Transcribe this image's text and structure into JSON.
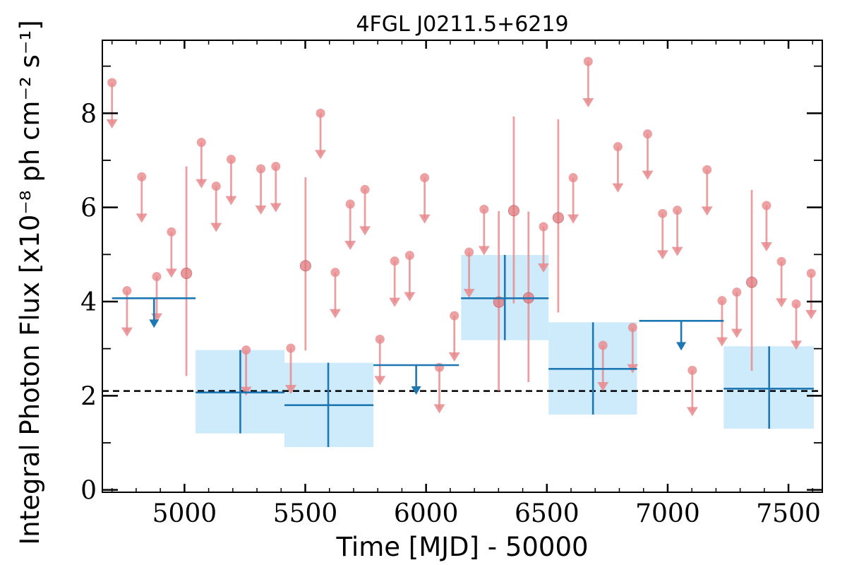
{
  "chart_data": {
    "type": "scatter",
    "title": "4FGL J0211.5+6219",
    "xlabel": "Time [MJD] - 50000",
    "ylabel": "Integral Photon Flux [x10⁻⁸ ph cm⁻² s⁻¹]",
    "xlim": [
      4660,
      7640
    ],
    "ylim": [
      -0.05,
      9.55
    ],
    "xticks": [
      5000,
      5500,
      6000,
      6500,
      7000,
      7500
    ],
    "xtick_labels": [
      "5000",
      "5500",
      "6000",
      "6500",
      "7000",
      "7500"
    ],
    "yticks": [
      0,
      2,
      4,
      6,
      8
    ],
    "ytick_labels": [
      "0",
      "2",
      "4",
      "6",
      "8"
    ],
    "grid": false,
    "reference_line": {
      "y": 2.1,
      "style": "dashed",
      "color": "#000000"
    },
    "colors": {
      "short_bins": "#e8898c",
      "long_bins": "#1f77b4",
      "long_band": "#cdebfa"
    },
    "series": [
      {
        "marker": "upper-limit",
        "color": "#e8898c",
        "points": [
          {
            "x": 4700,
            "y": 8.65
          },
          {
            "x": 4762,
            "y": 4.23
          },
          {
            "x": 4823,
            "y": 6.65
          },
          {
            "x": 4885,
            "y": 4.53
          },
          {
            "x": 4946,
            "y": 5.48
          },
          {
            "x": 5070,
            "y": 7.38
          },
          {
            "x": 5131,
            "y": 6.45
          },
          {
            "x": 5193,
            "y": 7.02
          },
          {
            "x": 5255,
            "y": 2.97
          },
          {
            "x": 5316,
            "y": 6.82
          },
          {
            "x": 5378,
            "y": 6.87
          },
          {
            "x": 5440,
            "y": 3.01
          },
          {
            "x": 5563,
            "y": 8.0
          },
          {
            "x": 5624,
            "y": 4.62
          },
          {
            "x": 5686,
            "y": 6.07
          },
          {
            "x": 5747,
            "y": 6.38
          },
          {
            "x": 5809,
            "y": 3.2
          },
          {
            "x": 5870,
            "y": 4.86
          },
          {
            "x": 5932,
            "y": 4.98
          },
          {
            "x": 5994,
            "y": 6.63
          },
          {
            "x": 6055,
            "y": 2.6
          },
          {
            "x": 6117,
            "y": 3.7
          },
          {
            "x": 6178,
            "y": 5.05
          },
          {
            "x": 6240,
            "y": 5.96
          },
          {
            "x": 6486,
            "y": 5.59
          },
          {
            "x": 6609,
            "y": 6.63
          },
          {
            "x": 6671,
            "y": 9.1
          },
          {
            "x": 6732,
            "y": 3.07
          },
          {
            "x": 6794,
            "y": 7.29
          },
          {
            "x": 6855,
            "y": 3.45
          },
          {
            "x": 6917,
            "y": 7.56
          },
          {
            "x": 6979,
            "y": 5.87
          },
          {
            "x": 7040,
            "y": 5.94
          },
          {
            "x": 7102,
            "y": 2.54
          },
          {
            "x": 7163,
            "y": 6.8
          },
          {
            "x": 7225,
            "y": 4.02
          },
          {
            "x": 7286,
            "y": 4.2
          },
          {
            "x": 7409,
            "y": 6.04
          },
          {
            "x": 7471,
            "y": 4.85
          },
          {
            "x": 7532,
            "y": 3.95
          },
          {
            "x": 7594,
            "y": 4.6
          }
        ]
      },
      {
        "marker": "detection",
        "color": "#e8898c",
        "points": [
          {
            "x": 5008,
            "y": 4.6,
            "ylow": 2.42,
            "yhigh": 6.87
          },
          {
            "x": 5501,
            "y": 4.76,
            "ylow": 2.96,
            "yhigh": 6.64
          },
          {
            "x": 6301,
            "y": 3.99,
            "ylow": 2.1,
            "yhigh": 5.92
          },
          {
            "x": 6363,
            "y": 5.93,
            "ylow": 3.96,
            "yhigh": 7.93
          },
          {
            "x": 6424,
            "y": 4.08,
            "ylow": 2.29,
            "yhigh": 5.91
          },
          {
            "x": 6547,
            "y": 5.78,
            "ylow": 3.77,
            "yhigh": 7.87
          },
          {
            "x": 7348,
            "y": 4.41,
            "ylow": 2.53,
            "yhigh": 6.37
          }
        ]
      },
      {
        "marker": "upper-limit-wide",
        "color": "#1f77b4",
        "points": [
          {
            "x": 4874,
            "xlow": 4700,
            "xhigh": 5046,
            "y": 4.07
          },
          {
            "x": 5959,
            "xlow": 5782,
            "xhigh": 6136,
            "y": 2.65
          },
          {
            "x": 7056,
            "xlow": 6882,
            "xhigh": 7232,
            "y": 3.59
          }
        ]
      },
      {
        "marker": "detection-wide",
        "color": "#1f77b4",
        "band_color": "#cdebfa",
        "points": [
          {
            "x": 5231,
            "xlow": 5046,
            "xhigh": 5414,
            "y": 2.07,
            "ylow": 1.2,
            "yhigh": 2.97
          },
          {
            "x": 5595,
            "xlow": 5414,
            "xhigh": 5782,
            "y": 1.8,
            "ylow": 0.91,
            "yhigh": 2.7
          },
          {
            "x": 6326,
            "xlow": 6145,
            "xhigh": 6507,
            "y": 4.07,
            "ylow": 3.18,
            "yhigh": 4.99
          },
          {
            "x": 6691,
            "xlow": 6507,
            "xhigh": 6873,
            "y": 2.57,
            "ylow": 1.6,
            "yhigh": 3.56
          },
          {
            "x": 7420,
            "xlow": 7232,
            "xhigh": 7605,
            "y": 2.15,
            "ylow": 1.3,
            "yhigh": 3.05
          }
        ]
      }
    ]
  }
}
